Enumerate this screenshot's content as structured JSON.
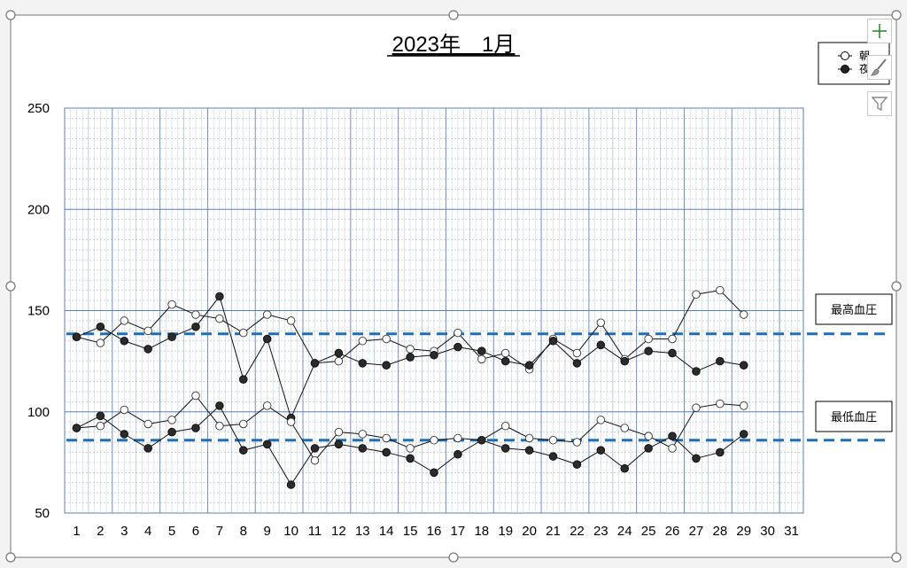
{
  "chart_data": {
    "type": "line",
    "title": "2023年　1月",
    "categories": [
      "1",
      "2",
      "3",
      "4",
      "5",
      "6",
      "7",
      "8",
      "9",
      "10",
      "11",
      "12",
      "13",
      "14",
      "15",
      "16",
      "17",
      "18",
      "19",
      "20",
      "21",
      "22",
      "23",
      "24",
      "25",
      "26",
      "27",
      "28",
      "29",
      "30",
      "31"
    ],
    "ylim": [
      50,
      250
    ],
    "yticks": [
      "50",
      "100",
      "150",
      "200",
      "250"
    ],
    "grid": true,
    "legend_position": "top-right",
    "legend_labels": [
      "朝",
      "夜"
    ],
    "series": [
      {
        "name": "朝",
        "marker": "open",
        "values": [
          137,
          134,
          145,
          140,
          153,
          148,
          146,
          139,
          148,
          145,
          124,
          125,
          135,
          136,
          131,
          130,
          139,
          126,
          129,
          121,
          136,
          129,
          144,
          126,
          136,
          136,
          158,
          160,
          148,
          null,
          null
        ]
      },
      {
        "name": "夜",
        "marker": "filled",
        "values": [
          137,
          142,
          135,
          131,
          137,
          142,
          157,
          116,
          136,
          97,
          124,
          129,
          124,
          123,
          127,
          128,
          132,
          130,
          125,
          123,
          135,
          124,
          133,
          125,
          130,
          129,
          120,
          125,
          123,
          null,
          null
        ]
      },
      {
        "name": "朝",
        "marker": "open",
        "values": [
          92,
          93,
          101,
          94,
          96,
          108,
          93,
          94,
          103,
          95,
          76,
          90,
          89,
          87,
          82,
          86,
          87,
          86,
          93,
          87,
          86,
          85,
          96,
          92,
          88,
          82,
          102,
          104,
          103,
          null,
          null
        ]
      },
      {
        "name": "夜",
        "marker": "filled",
        "values": [
          92,
          98,
          89,
          82,
          90,
          92,
          103,
          81,
          84,
          64,
          82,
          84,
          82,
          80,
          77,
          70,
          79,
          86,
          82,
          81,
          78,
          74,
          81,
          72,
          82,
          88,
          77,
          80,
          89,
          null,
          null
        ]
      }
    ],
    "reference_lines": [
      {
        "label": "最高血圧",
        "value": 138.5,
        "color": "#1f6fb8"
      },
      {
        "label": "最低血圧",
        "value": 86,
        "color": "#1f6fb8"
      }
    ]
  },
  "icons": {
    "add": "plus-icon",
    "style": "brush-icon",
    "filter": "funnel-icon"
  }
}
